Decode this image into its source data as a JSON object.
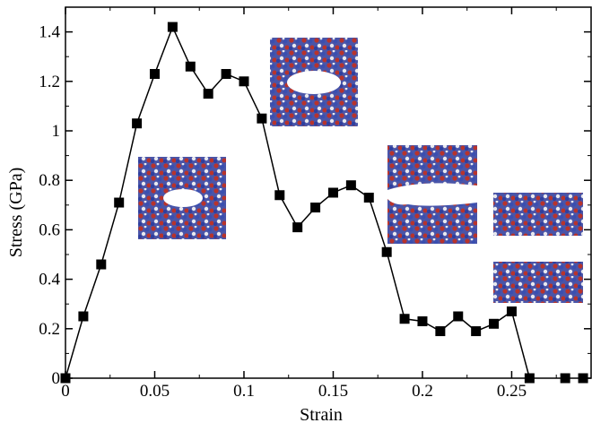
{
  "chart_data": {
    "type": "line",
    "title": "",
    "xlabel": "Strain",
    "ylabel": "Stress (GPa)",
    "xlim": [
      0,
      0.295
    ],
    "ylim": [
      0,
      1.5
    ],
    "x_ticks": [
      0,
      0.05,
      0.1,
      0.15,
      0.2,
      0.25
    ],
    "x_tick_labels": [
      "0",
      "0.05",
      "0.1",
      "0.15",
      "0.2",
      "0.25"
    ],
    "y_ticks": [
      0,
      0.2,
      0.4,
      0.6,
      0.8,
      1.0,
      1.2,
      1.4
    ],
    "y_tick_labels": [
      "0",
      "0.2",
      "0.4",
      "0.6",
      "0.8",
      "1",
      "1.2",
      "1.4"
    ],
    "grid": false,
    "legend": "none",
    "colors": {
      "line": "#000000",
      "marker": "#000000",
      "atom_blue": "#3a4fb0",
      "atom_red": "#b8332c",
      "atom_white": "#e9e9ef"
    },
    "series": [
      {
        "marker": "square",
        "x": [
          0.0,
          0.01,
          0.02,
          0.03,
          0.04,
          0.05,
          0.06,
          0.07,
          0.08,
          0.09,
          0.1,
          0.11,
          0.12,
          0.13,
          0.14,
          0.15,
          0.16,
          0.17,
          0.18,
          0.19,
          0.2,
          0.21,
          0.22,
          0.23,
          0.24,
          0.25,
          0.26
        ],
        "y": [
          0.0,
          0.25,
          0.46,
          0.71,
          1.03,
          1.23,
          1.42,
          1.26,
          1.15,
          1.23,
          1.2,
          1.05,
          0.74,
          0.61,
          0.69,
          0.75,
          0.78,
          0.73,
          0.51,
          0.24,
          0.23,
          0.19,
          0.25,
          0.19,
          0.22,
          0.27,
          0.0
        ]
      },
      {
        "marker": "square",
        "line": false,
        "x": [
          0.28,
          0.29
        ],
        "y": [
          0.0,
          0.0
        ]
      }
    ],
    "insets": [
      {
        "icon": "molecular-snapshot-small-void",
        "strain": 0.06
      },
      {
        "icon": "molecular-snapshot-elliptical-void",
        "strain": 0.11
      },
      {
        "icon": "molecular-snapshot-crack-propagating",
        "strain": 0.19
      },
      {
        "icon": "molecular-snapshot-fully-separated",
        "strain": 0.26
      }
    ]
  }
}
